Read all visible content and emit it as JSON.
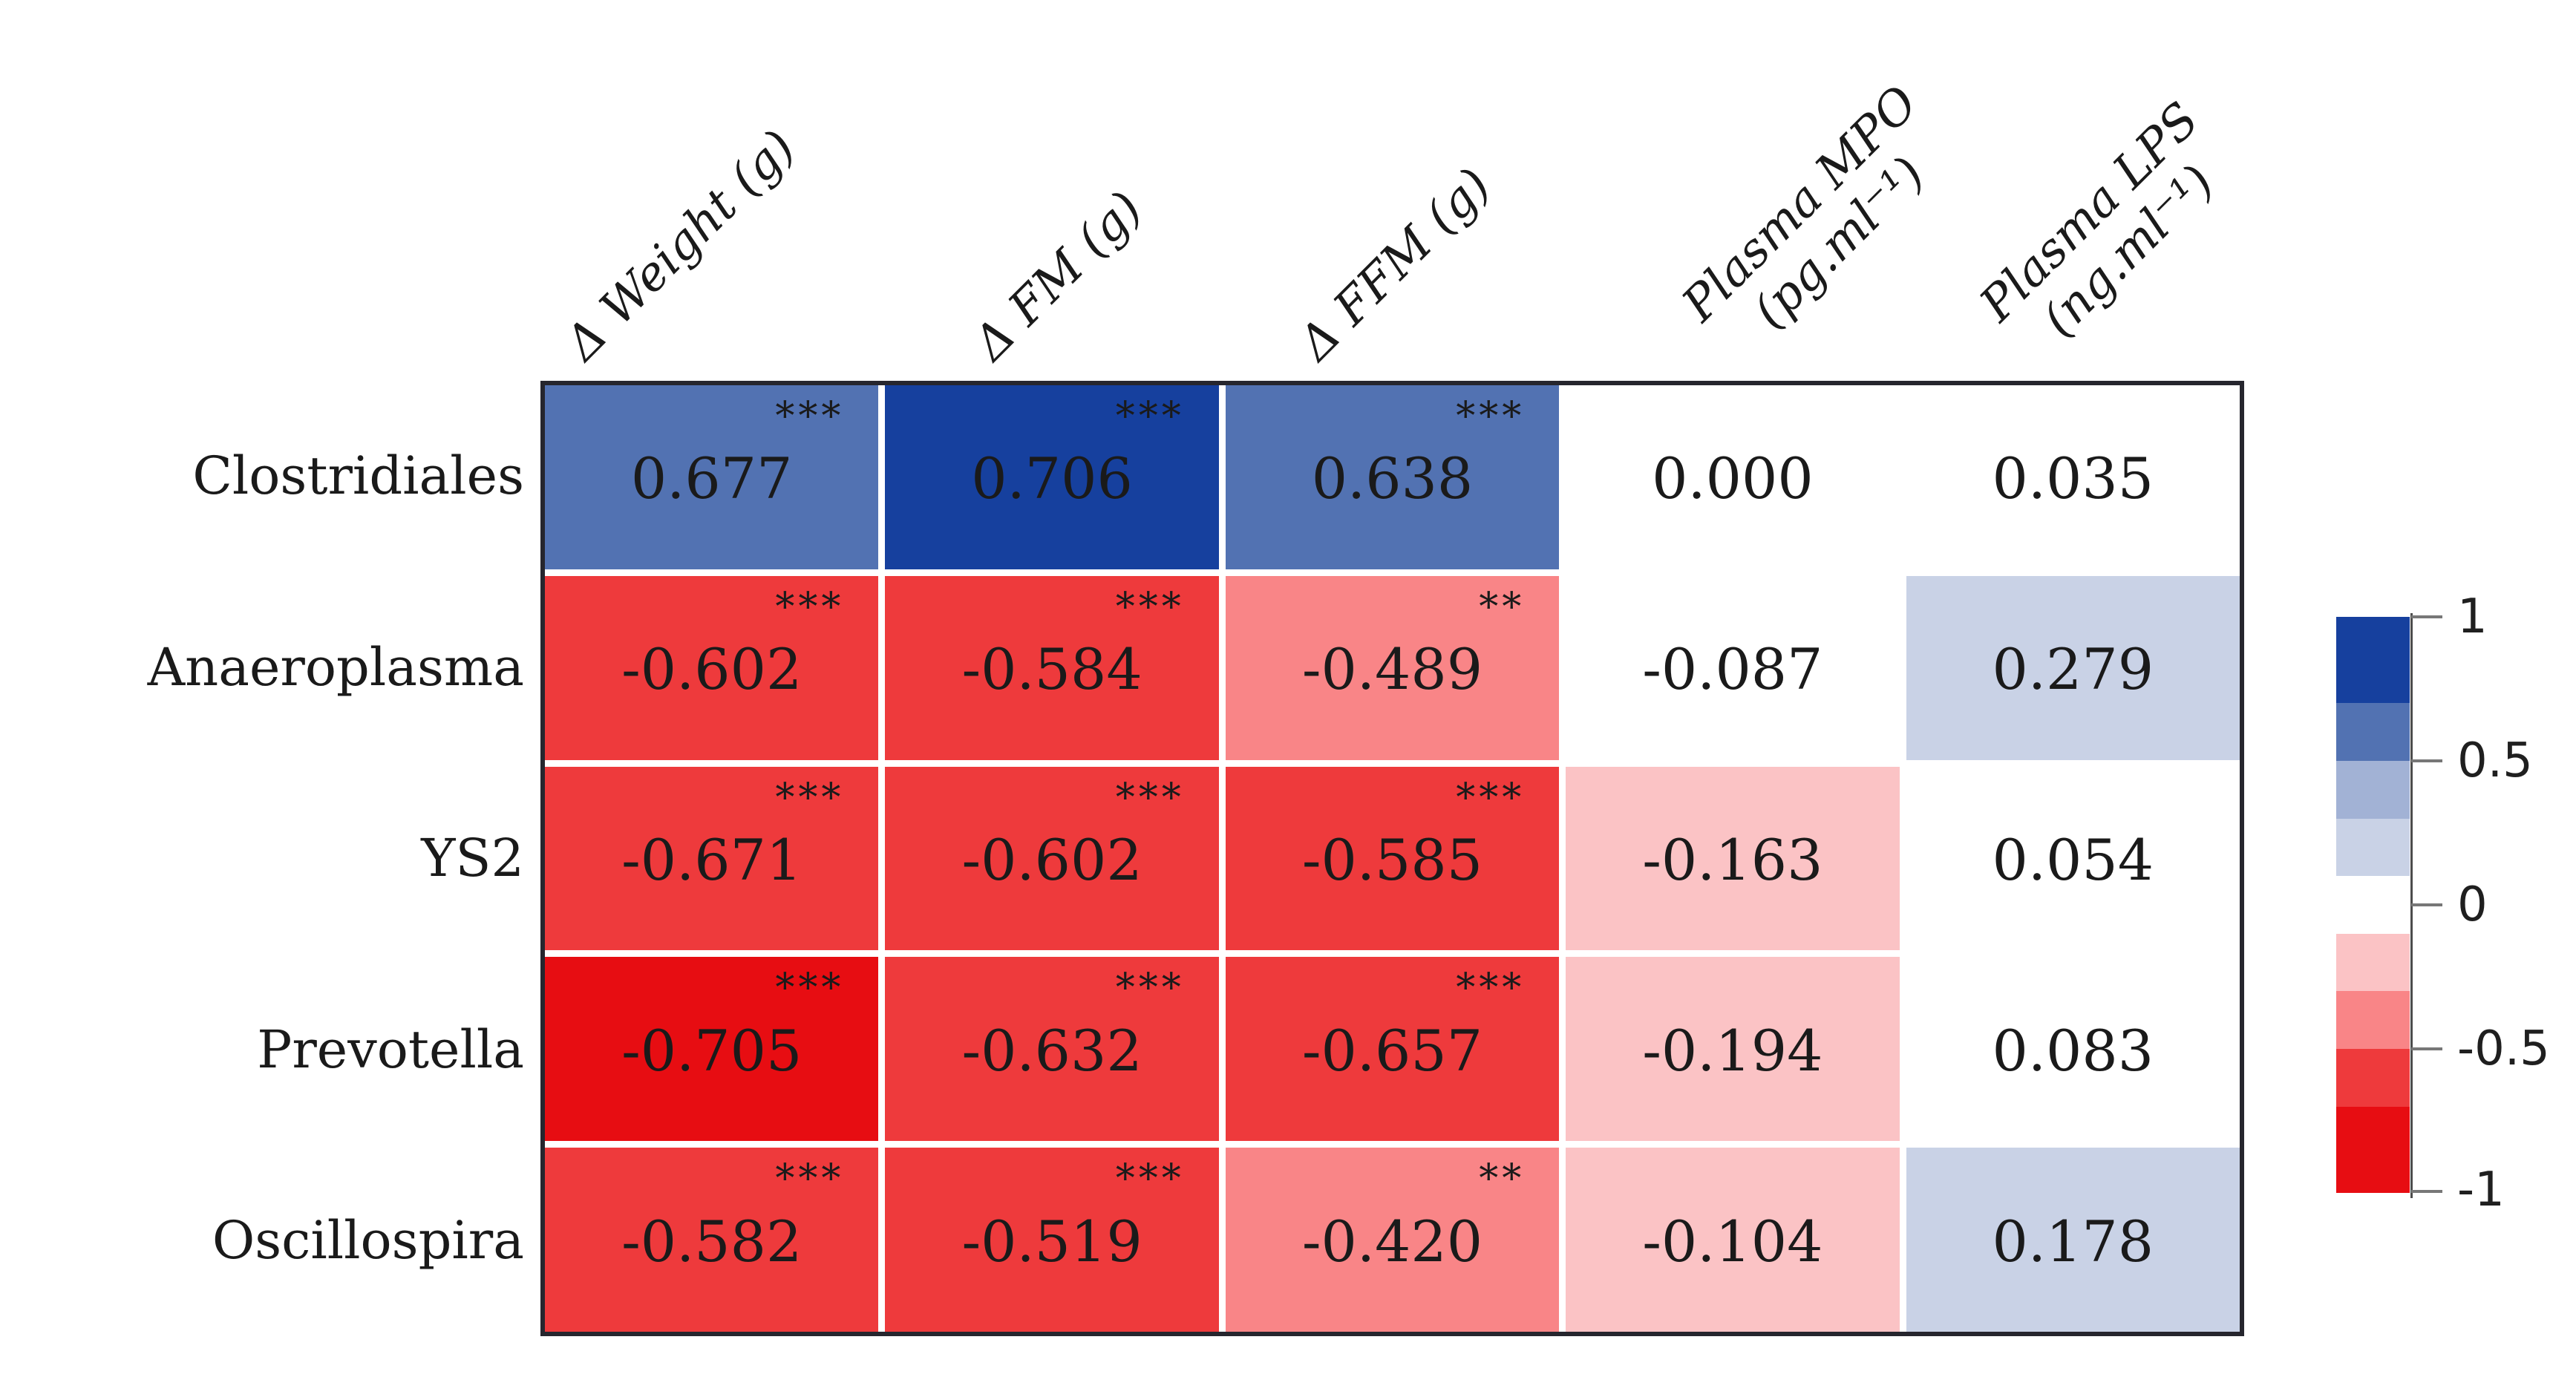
{
  "palette": {
    "blue_dark": "#16409e",
    "blue_mid": "#5272b2",
    "blue_soft": "#a2b2d5",
    "blue_pale": "#c9d2e6",
    "white": "#ffffff",
    "pink_pale": "#fbc3c5",
    "red_light": "#f98587",
    "red_mid": "#ee3a3c",
    "red_deep": "#e70d12",
    "table_border": "#26262e",
    "axis_line": "#4d4d4d",
    "text": "#1a1a1a"
  },
  "columns": [
    {
      "label": "Δ Weight (g)",
      "lines": [
        "Δ Weight (g)"
      ]
    },
    {
      "label": "Δ FM (g)",
      "lines": [
        "Δ FM (g)"
      ]
    },
    {
      "label": "Δ FFM (g)",
      "lines": [
        "Δ FFM (g)"
      ]
    },
    {
      "label": "Plasma MPO (pg.ml⁻¹)",
      "lines": [
        "Plasma MPO",
        "(pg.ml⁻¹)"
      ]
    },
    {
      "label": "Plasma LPS (ng.ml⁻¹)",
      "lines": [
        "Plasma LPS",
        "(ng.ml⁻¹)"
      ]
    }
  ],
  "rows": [
    {
      "label": "Clostridiales",
      "cells": [
        {
          "value": "0.677",
          "stars": "***",
          "bin": "blue_mid"
        },
        {
          "value": "0.706",
          "stars": "***",
          "bin": "blue_dark"
        },
        {
          "value": "0.638",
          "stars": "***",
          "bin": "blue_mid"
        },
        {
          "value": "0.000",
          "stars": "",
          "bin": "white"
        },
        {
          "value": "0.035",
          "stars": "",
          "bin": "white"
        }
      ]
    },
    {
      "label": "Anaeroplasma",
      "cells": [
        {
          "value": "-0.602",
          "stars": "***",
          "bin": "red_mid"
        },
        {
          "value": "-0.584",
          "stars": "***",
          "bin": "red_mid"
        },
        {
          "value": "-0.489",
          "stars": "**",
          "bin": "red_light"
        },
        {
          "value": "-0.087",
          "stars": "",
          "bin": "white"
        },
        {
          "value": "0.279",
          "stars": "",
          "bin": "blue_pale"
        }
      ]
    },
    {
      "label": "YS2",
      "cells": [
        {
          "value": "-0.671",
          "stars": "***",
          "bin": "red_mid"
        },
        {
          "value": "-0.602",
          "stars": "***",
          "bin": "red_mid"
        },
        {
          "value": "-0.585",
          "stars": "***",
          "bin": "red_mid"
        },
        {
          "value": "-0.163",
          "stars": "",
          "bin": "pink_pale"
        },
        {
          "value": "0.054",
          "stars": "",
          "bin": "white"
        }
      ]
    },
    {
      "label": "Prevotella",
      "cells": [
        {
          "value": "-0.705",
          "stars": "***",
          "bin": "red_deep"
        },
        {
          "value": "-0.632",
          "stars": "***",
          "bin": "red_mid"
        },
        {
          "value": "-0.657",
          "stars": "***",
          "bin": "red_mid"
        },
        {
          "value": "-0.194",
          "stars": "",
          "bin": "pink_pale"
        },
        {
          "value": "0.083",
          "stars": "",
          "bin": "white"
        }
      ]
    },
    {
      "label": "Oscillospira",
      "cells": [
        {
          "value": "-0.582",
          "stars": "***",
          "bin": "red_mid"
        },
        {
          "value": "-0.519",
          "stars": "***",
          "bin": "red_mid"
        },
        {
          "value": "-0.420",
          "stars": "**",
          "bin": "red_light"
        },
        {
          "value": "-0.104",
          "stars": "",
          "bin": "pink_pale"
        },
        {
          "value": "0.178",
          "stars": "",
          "bin": "blue_pale"
        }
      ]
    }
  ],
  "legend": {
    "ticks": [
      {
        "label": "1"
      },
      {
        "label": "0.5"
      },
      {
        "label": "0"
      },
      {
        "label": "-0.5"
      },
      {
        "label": "-1"
      }
    ],
    "segments": [
      {
        "bin": "blue_dark",
        "span": 0.3
      },
      {
        "bin": "blue_mid",
        "span": 0.2
      },
      {
        "bin": "blue_soft",
        "span": 0.2
      },
      {
        "bin": "blue_pale",
        "span": 0.2
      },
      {
        "bin": "white",
        "span": 0.2
      },
      {
        "bin": "pink_pale",
        "span": 0.2
      },
      {
        "bin": "red_light",
        "span": 0.2
      },
      {
        "bin": "red_mid",
        "span": 0.2
      },
      {
        "bin": "red_deep",
        "span": 0.3
      }
    ]
  },
  "chart_data": {
    "type": "heatmap",
    "title": "",
    "rows": [
      "Clostridiales",
      "Anaeroplasma",
      "YS2",
      "Prevotella",
      "Oscillospira"
    ],
    "columns": [
      "Δ Weight (g)",
      "Δ FM (g)",
      "Δ FFM (g)",
      "Plasma MPO (pg.ml⁻¹)",
      "Plasma LPS (ng.ml⁻¹)"
    ],
    "values": [
      [
        0.677,
        0.706,
        0.638,
        0.0,
        0.035
      ],
      [
        -0.602,
        -0.584,
        -0.489,
        -0.087,
        0.279
      ],
      [
        -0.671,
        -0.602,
        -0.585,
        -0.163,
        0.054
      ],
      [
        -0.705,
        -0.632,
        -0.657,
        -0.194,
        0.083
      ],
      [
        -0.582,
        -0.519,
        -0.42,
        -0.104,
        0.178
      ]
    ],
    "significance": [
      [
        "***",
        "***",
        "***",
        "",
        ""
      ],
      [
        "***",
        "***",
        "**",
        "",
        ""
      ],
      [
        "***",
        "***",
        "***",
        "",
        ""
      ],
      [
        "***",
        "***",
        "***",
        "",
        ""
      ],
      [
        "***",
        "***",
        "**",
        "",
        ""
      ]
    ],
    "colorbar": {
      "range": [
        -1,
        1
      ],
      "ticks": [
        1,
        0.5,
        0,
        -0.5,
        -1
      ],
      "discrete_bounds": [
        1,
        0.7,
        0.5,
        0.3,
        0.1,
        -0.1,
        -0.3,
        -0.5,
        -0.7,
        -1
      ],
      "colors": [
        "#16409e",
        "#5272b2",
        "#a2b2d5",
        "#c9d2e6",
        "#ffffff",
        "#fbc3c5",
        "#f98587",
        "#ee3a3c",
        "#e70d12"
      ],
      "position": "right"
    },
    "legend_position": "right",
    "grid": "white gaps between cells",
    "value_labels": "shown in each cell with significance asterisks"
  }
}
